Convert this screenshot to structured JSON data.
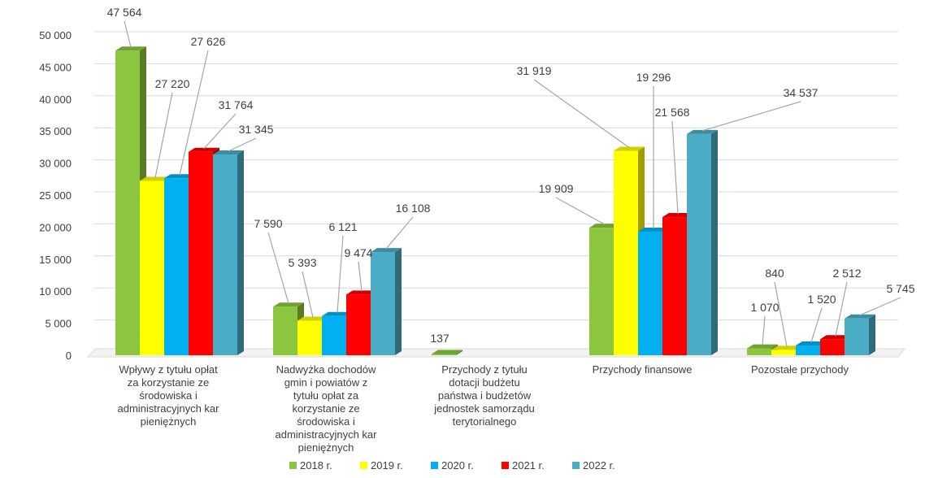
{
  "chart_data": {
    "type": "bar",
    "categories": [
      "Wpływy z tytułu opłat za korzystanie ze środowiska i administracyjnych kar pieniężnych",
      "Nadwyżka dochodów gmin i powiatów z tytułu opłat za korzystanie ze środowiska i administracyjnych kar pieniężnych",
      "Przychody z tytułu dotacji budżetu państwa i budżetów jednostek samorządu terytorialnego",
      "Przychody finansowe",
      "Pozostałe przychody"
    ],
    "category_lines": [
      [
        "Wpływy z tytułu opłat",
        "za korzystanie ze",
        "środowiska i",
        "administracyjnych kar",
        "pieniężnych"
      ],
      [
        "Nadwyżka dochodów",
        "gmin i powiatów z",
        "tytułu opłat za",
        "korzystanie ze",
        "środowiska i",
        "administracyjnych kar",
        "pieniężnych"
      ],
      [
        "Przychody z tytułu",
        "dotacji budżetu",
        "państwa i budżetów",
        "jednostek samorządu",
        "terytorialnego"
      ],
      [
        "Przychody finansowe"
      ],
      [
        "Pozostałe przychody"
      ]
    ],
    "series": [
      {
        "name": "2018 r.",
        "color": "#8CC63F",
        "values": [
          47564,
          7590,
          137,
          19909,
          1070
        ],
        "labels": [
          "47 564",
          "7 590",
          "137",
          "19 909",
          "1 070"
        ]
      },
      {
        "name": "2019 r.",
        "color": "#FFFF00",
        "values": [
          27220,
          5393,
          null,
          31919,
          840
        ],
        "labels": [
          "27 220",
          "5 393",
          "",
          "31 919",
          "840"
        ]
      },
      {
        "name": "2020 r.",
        "color": "#00B0F0",
        "values": [
          27626,
          6121,
          null,
          19296,
          1520
        ],
        "labels": [
          "27 626",
          "6 121",
          "",
          "19 296",
          "1 520"
        ]
      },
      {
        "name": "2021 r.",
        "color": "#FF0000",
        "values": [
          31764,
          9474,
          null,
          21568,
          2512
        ],
        "labels": [
          "31 764",
          "9 474",
          "",
          "21 568",
          "2 512"
        ]
      },
      {
        "name": "2022 r.",
        "color": "#4BACC6",
        "values": [
          31345,
          16108,
          null,
          34537,
          5745
        ],
        "labels": [
          "31 345",
          "16 108",
          "",
          "34 537",
          "5 745"
        ]
      }
    ],
    "yticks": [
      "0",
      "5 000",
      "10 000",
      "15 000",
      "20 000",
      "25 000",
      "30 000",
      "35 000",
      "40 000",
      "45 000",
      "50 000"
    ],
    "ylim": [
      0,
      50000
    ],
    "grid": true,
    "legend": "bottom",
    "xlabel": "",
    "ylabel": "",
    "title": ""
  }
}
